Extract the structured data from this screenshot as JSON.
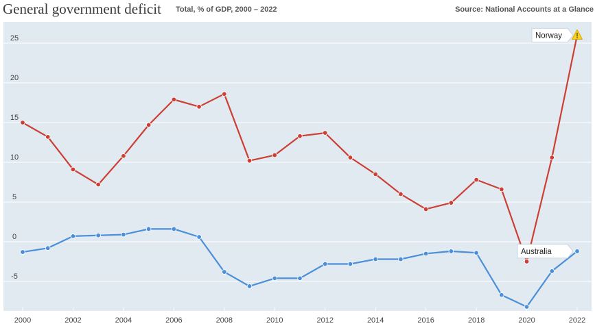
{
  "header": {
    "title": "General government deficit",
    "subtitle": "Total, % of GDP, 2000 – 2022",
    "source": "Source: National Accounts at a Glance"
  },
  "colors": {
    "plot_background": "#e1e9f1",
    "gridline": "#ffffff",
    "norway": "#cc3f34",
    "australia": "#4a8fd8",
    "warning": "#f5d327"
  },
  "chart_data": {
    "type": "line",
    "title": "General government deficit",
    "subtitle": "Total, % of GDP, 2000 – 2022",
    "xlabel": "",
    "ylabel": "",
    "x": [
      2000,
      2001,
      2002,
      2003,
      2004,
      2005,
      2006,
      2007,
      2008,
      2009,
      2010,
      2011,
      2012,
      2013,
      2014,
      2015,
      2016,
      2017,
      2018,
      2019,
      2020,
      2021,
      2022
    ],
    "xticks": [
      "2000",
      "2002",
      "2004",
      "2006",
      "2008",
      "2010",
      "2012",
      "2014",
      "2016",
      "2018",
      "2020",
      "2022"
    ],
    "yticks": [
      "-5",
      "0",
      "5",
      "10",
      "15",
      "20",
      "25"
    ],
    "ylim": [
      -9,
      27.5
    ],
    "xlim": [
      1999.2,
      2022.2
    ],
    "grid": true,
    "series": [
      {
        "name": "Norway",
        "color": "#cc3f34",
        "values": [
          15.0,
          13.2,
          9.1,
          7.2,
          10.8,
          14.7,
          17.9,
          17.0,
          18.6,
          10.2,
          10.9,
          13.3,
          13.7,
          10.6,
          8.5,
          6.0,
          4.1,
          4.9,
          7.8,
          6.6,
          -2.5,
          10.6,
          26.0
        ],
        "end_label": "Norway",
        "end_marker": "warning-icon"
      },
      {
        "name": "Australia",
        "color": "#4a8fd8",
        "values": [
          -1.3,
          -0.8,
          0.7,
          0.8,
          0.9,
          1.6,
          1.6,
          0.6,
          -3.8,
          -5.6,
          -4.6,
          -4.6,
          -2.8,
          -2.8,
          -2.2,
          -2.2,
          -1.5,
          -1.2,
          -1.4,
          -6.7,
          -8.2,
          -3.7,
          -1.2
        ],
        "end_label": "Australia"
      }
    ]
  }
}
